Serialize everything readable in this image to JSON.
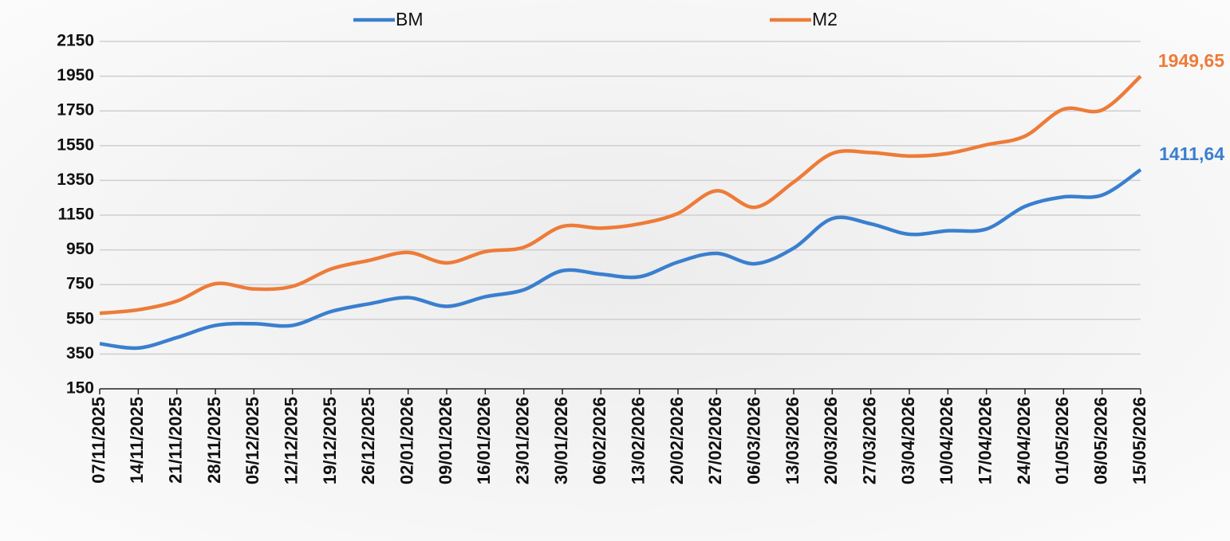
{
  "chart_data": {
    "type": "line",
    "categories": [
      "07/11/2025",
      "14/11/2025",
      "21/11/2025",
      "28/11/2025",
      "05/12/2025",
      "12/12/2025",
      "19/12/2025",
      "26/12/2025",
      "02/01/2026",
      "09/01/2026",
      "16/01/2026",
      "23/01/2026",
      "30/01/2026",
      "06/02/2026",
      "13/02/2026",
      "20/02/2026",
      "27/02/2026",
      "06/03/2026",
      "13/03/2026",
      "20/03/2026",
      "27/03/2026",
      "03/04/2026",
      "10/04/2026",
      "17/04/2026",
      "24/04/2026",
      "01/05/2026",
      "08/05/2026",
      "15/05/2026"
    ],
    "series": [
      {
        "name": "BM",
        "color": "#3a7fcf",
        "values": [
          410,
          385,
          445,
          515,
          525,
          515,
          595,
          640,
          675,
          625,
          680,
          720,
          830,
          810,
          795,
          880,
          930,
          870,
          960,
          1130,
          1100,
          1040,
          1060,
          1070,
          1200,
          1255,
          1265,
          1411.64
        ],
        "value_labels": [
          null,
          null,
          null,
          null,
          null,
          null,
          null,
          null,
          null,
          null,
          null,
          null,
          null,
          null,
          null,
          null,
          null,
          null,
          null,
          null,
          null,
          null,
          null,
          null,
          null,
          null,
          null,
          "1411,64"
        ]
      },
      {
        "name": "M2",
        "color": "#ee7b38",
        "values": [
          585,
          605,
          655,
          755,
          725,
          740,
          840,
          890,
          935,
          875,
          940,
          965,
          1085,
          1075,
          1100,
          1160,
          1290,
          1195,
          1340,
          1505,
          1510,
          1490,
          1505,
          1555,
          1605,
          1760,
          1755,
          1949.65
        ],
        "value_labels": [
          null,
          null,
          null,
          null,
          null,
          null,
          null,
          null,
          null,
          null,
          null,
          null,
          null,
          null,
          null,
          null,
          null,
          null,
          null,
          null,
          null,
          null,
          null,
          null,
          null,
          null,
          null,
          "1949,65"
        ]
      }
    ],
    "ylim": [
      150,
      2150
    ],
    "yticks": [
      150,
      350,
      550,
      750,
      950,
      1150,
      1350,
      1550,
      1750,
      1950,
      2150
    ],
    "grid": true,
    "legend": "top"
  }
}
